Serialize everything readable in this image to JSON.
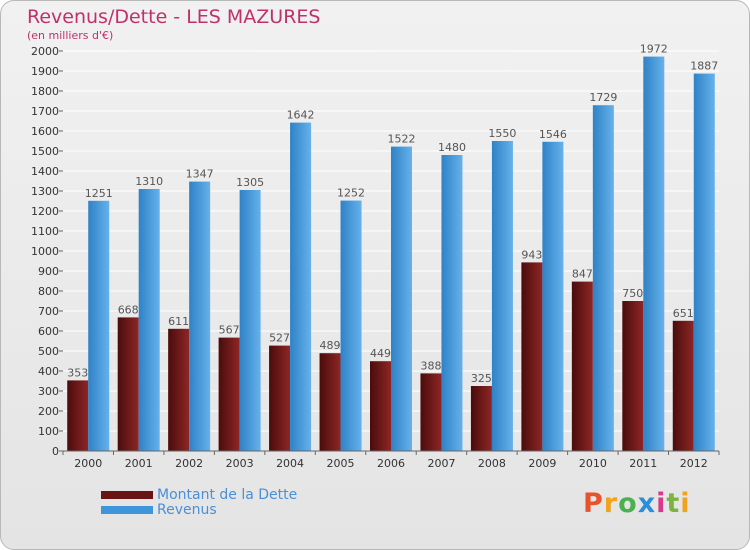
{
  "chart_data": {
    "type": "bar",
    "title": "Revenus/Dette - LES MAZURES",
    "subtitle": "(en milliers d'€)",
    "categories": [
      "2000",
      "2001",
      "2002",
      "2003",
      "2004",
      "2005",
      "2006",
      "2007",
      "2008",
      "2009",
      "2010",
      "2011",
      "2012"
    ],
    "series": [
      {
        "name": "Montant de la Dette",
        "color": "#7a1c1c",
        "values": [
          353,
          668,
          611,
          567,
          527,
          489,
          449,
          388,
          325,
          943,
          847,
          750,
          651
        ]
      },
      {
        "name": "Revenus",
        "color": "#4d9fe0",
        "values": [
          1251,
          1310,
          1347,
          1305,
          1642,
          1252,
          1522,
          1480,
          1550,
          1546,
          1729,
          1972,
          1887
        ]
      }
    ],
    "ylim": [
      0,
      2000
    ],
    "yticks": [
      0,
      100,
      200,
      300,
      400,
      500,
      600,
      700,
      800,
      900,
      1000,
      1100,
      1200,
      1300,
      1400,
      1500,
      1600,
      1700,
      1800,
      1900,
      2000
    ],
    "grid": true,
    "legend_position": "bottom-left"
  },
  "logo": {
    "text": "Proxiti",
    "colors": [
      "#e8532a",
      "#f0a31e",
      "#4caf50",
      "#2a8fd8",
      "#d63a8a",
      "#7cb342",
      "#f0a31e"
    ]
  }
}
